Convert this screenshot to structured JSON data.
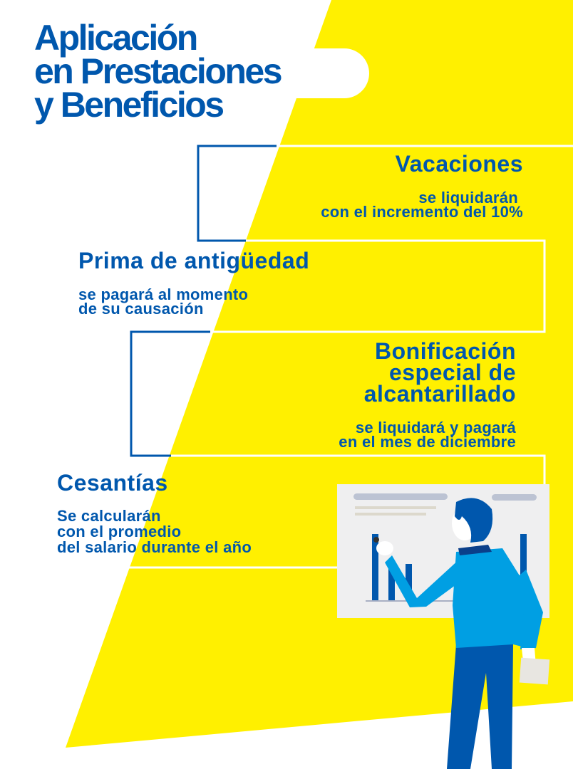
{
  "title": {
    "line1": "Aplicación",
    "line2": "en Prestaciones",
    "line3": "y Beneficios"
  },
  "items": [
    {
      "heading": "Vacaciones",
      "line1": "se liquidarán",
      "line2": "con el incremento del 10%"
    },
    {
      "heading": "Prima de antigüedad",
      "line1": "se pagará al momento",
      "line2": "de su causación"
    },
    {
      "heading_lines": [
        "Bonificación",
        "especial de",
        "alcantarillado"
      ],
      "line1": "se liquidará y pagará",
      "line2": "en el mes de diciembre"
    },
    {
      "heading": "Cesantías",
      "line1": "Se calcularán",
      "line2": "con el promedio",
      "line3": "del salario durante el año"
    }
  ],
  "colors": {
    "blue": "#0057ad",
    "yellow": "#fff000",
    "shirt": "#009fe3",
    "board": "#efeff0"
  },
  "illustration": "person-presenting-bar-chart"
}
